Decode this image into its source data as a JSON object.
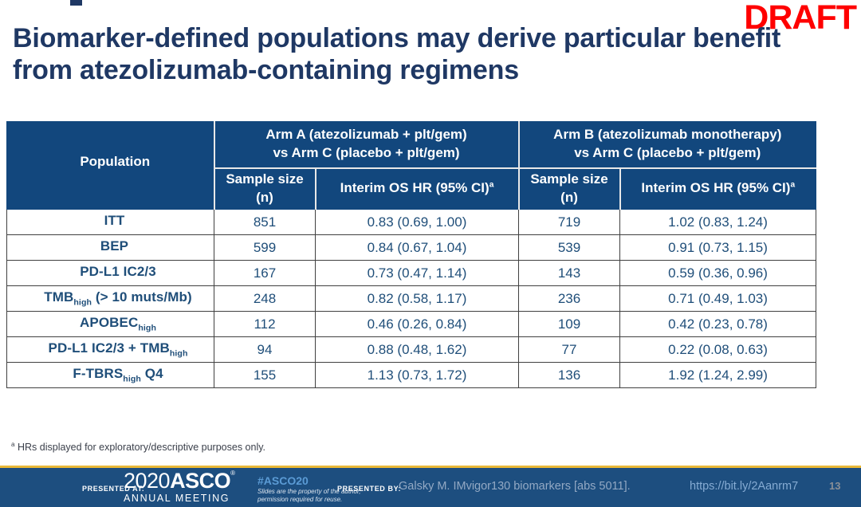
{
  "slide": {
    "title": "Biomarker-defined populations may derive particular benefit from atezolizumab-containing regimens",
    "draft_label": "DRAFT",
    "footnote": {
      "sup": "a",
      "text": "HRs displayed for exploratory/descriptive purposes only."
    }
  },
  "table": {
    "population_header": "Population",
    "group_headers": [
      {
        "line1": "Arm A (atezolizumab + plt/gem)",
        "line2": "vs Arm C (placebo + plt/gem)"
      },
      {
        "line1": "Arm B (atezolizumab monotherapy)",
        "line2": "vs Arm C (placebo + plt/gem)"
      }
    ],
    "sub_headers": {
      "sample_size": "Sample size (n)",
      "hr_main": "Interim OS HR (95% CI)",
      "hr_sup": "a"
    },
    "rows": [
      {
        "population_main": "ITT",
        "population_sub": "",
        "population_suffix": "",
        "n_a": "851",
        "hr_a": "0.83 (0.69, 1.00)",
        "n_b": "719",
        "hr_b": "1.02 (0.83, 1.24)"
      },
      {
        "population_main": "BEP",
        "population_sub": "",
        "population_suffix": "",
        "n_a": "599",
        "hr_a": "0.84 (0.67, 1.04)",
        "n_b": "539",
        "hr_b": "0.91 (0.73, 1.15)"
      },
      {
        "population_main": "PD-L1 IC2/3",
        "population_sub": "",
        "population_suffix": "",
        "n_a": "167",
        "hr_a": "0.73 (0.47, 1.14)",
        "n_b": "143",
        "hr_b": "0.59 (0.36, 0.96)"
      },
      {
        "population_main": "TMB",
        "population_sub": "high",
        "population_suffix": " (> 10 muts/Mb)",
        "n_a": "248",
        "hr_a": "0.82 (0.58, 1.17)",
        "n_b": "236",
        "hr_b": "0.71 (0.49, 1.03)"
      },
      {
        "population_main": "APOBEC",
        "population_sub": "high",
        "population_suffix": "",
        "n_a": "112",
        "hr_a": "0.46 (0.26, 0.84)",
        "n_b": "109",
        "hr_b": "0.42 (0.23, 0.78)"
      },
      {
        "population_main": "PD-L1 IC2/3 + TMB",
        "population_sub": "high",
        "population_suffix": "",
        "n_a": "94",
        "hr_a": "0.88 (0.48, 1.62)",
        "n_b": "77",
        "hr_b": "0.22 (0.08, 0.63)"
      },
      {
        "population_main": "F-TBRS",
        "population_sub": "high",
        "population_suffix": " Q4",
        "n_a": "155",
        "hr_a": "1.13 (0.73, 1.72)",
        "n_b": "136",
        "hr_b": "1.92 (1.24, 2.99)"
      }
    ]
  },
  "chart_data": {
    "type": "table",
    "title": "Biomarker-defined populations may derive particular benefit from atezolizumab-containing regimens",
    "columns": [
      "Population",
      "Arm A Sample size (n)",
      "Arm A Interim OS HR (95% CI)",
      "Arm B Sample size (n)",
      "Arm B Interim OS HR (95% CI)"
    ],
    "rows": [
      [
        "ITT",
        851,
        "0.83 (0.69, 1.00)",
        719,
        "1.02 (0.83, 1.24)"
      ],
      [
        "BEP",
        599,
        "0.84 (0.67, 1.04)",
        539,
        "0.91 (0.73, 1.15)"
      ],
      [
        "PD-L1 IC2/3",
        167,
        "0.73 (0.47, 1.14)",
        143,
        "0.59 (0.36, 0.96)"
      ],
      [
        "TMBhigh (> 10 muts/Mb)",
        248,
        "0.82 (0.58, 1.17)",
        236,
        "0.71 (0.49, 1.03)"
      ],
      [
        "APOBEChigh",
        112,
        "0.46 (0.26, 0.84)",
        109,
        "0.42 (0.23, 0.78)"
      ],
      [
        "PD-L1 IC2/3 + TMBhigh",
        94,
        "0.88 (0.48, 1.62)",
        77,
        "0.22 (0.08, 0.63)"
      ],
      [
        "F-TBRShigh Q4",
        155,
        "1.13 (0.73, 1.72)",
        136,
        "1.92 (1.24, 2.99)"
      ]
    ]
  },
  "footer": {
    "presented_at_label": "PRESENTED AT:",
    "logo_year": "2020",
    "logo_name": "ASCO",
    "logo_mark": "®",
    "logo_subtitle": "ANNUAL MEETING",
    "hashtag": "#ASCO20",
    "disclaimer_line1": "Slides are the property of the author,",
    "disclaimer_line2": "permission required for reuse.",
    "presented_by_label": "PRESENTED BY:",
    "citation": "Galsky M. IMvigor130 biomarkers [abs 5011].",
    "url": "https://bit.ly/2Aanrm7",
    "page_number": "13"
  },
  "colors": {
    "title_navy": "#1F3864",
    "draft_red": "#FF0000",
    "table_header_blue": "#12477D",
    "cell_text_navy": "#1F4E79",
    "cell_border": "#404040",
    "footer_blue": "#1D4E7F",
    "gold_line": "#E9B837",
    "hashtag_blue": "#5B9BD5",
    "citation_blue": "#93A9C4",
    "url_blue": "#85ABD3",
    "page_number_gray": "#8A8F96"
  }
}
